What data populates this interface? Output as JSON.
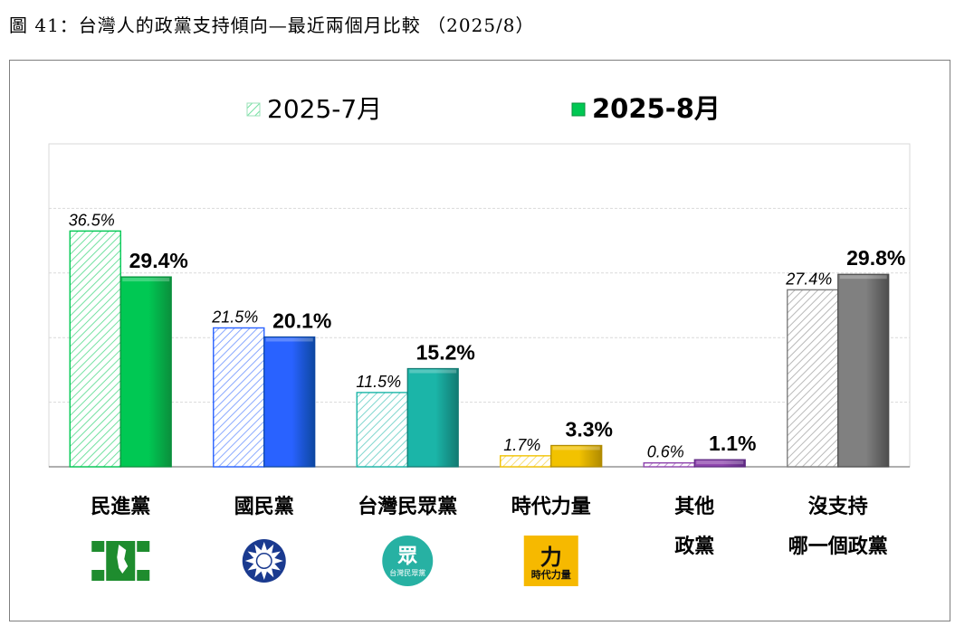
{
  "figure_title": "圖 41：台灣人的政黨支持傾向—最近兩個月比較 （2025/8）",
  "colors": {
    "grid": "#d9d9d9",
    "axis": "#7f7f7f"
  },
  "chart_data": {
    "type": "bar",
    "title": "",
    "ylim": [
      0,
      50
    ],
    "grid": true,
    "legend_position": "top",
    "categories": [
      [
        "民進黨"
      ],
      [
        "國民黨"
      ],
      [
        "台灣民眾黨"
      ],
      [
        "時代力量"
      ],
      [
        "其他",
        "政黨"
      ],
      [
        "沒支持",
        "哪一個政黨"
      ]
    ],
    "series": [
      {
        "name": "2025-7月",
        "values": [
          36.5,
          21.5,
          11.5,
          1.7,
          0.6,
          27.4
        ],
        "labels": [
          "36.5%",
          "21.5%",
          "11.5%",
          "1.7%",
          "0.6%",
          "27.4%"
        ]
      },
      {
        "name": "2025-8月",
        "values": [
          29.4,
          20.1,
          15.2,
          3.3,
          1.1,
          29.8
        ],
        "labels": [
          "29.4%",
          "20.1%",
          "15.2%",
          "3.3%",
          "1.1%",
          "29.8%"
        ]
      }
    ],
    "category_colors": [
      "#00c853",
      "#2962ff",
      "#1bb5a8",
      "#f2c200",
      "#8e44ad",
      "#808080"
    ],
    "category_dark_colors": [
      "#0a8f3c",
      "#0d47a1",
      "#127a72",
      "#b08a00",
      "#5e2a82",
      "#4d4d4d"
    ],
    "logos": [
      "dpp-logo",
      "kmt-logo",
      "tpp-logo",
      "npp-logo",
      "",
      ""
    ],
    "logo_text": {
      "tpp_glyph": "眾",
      "tpp_name": "台灣民眾黨",
      "npp_glyph": "力",
      "npp_name": "時代力量"
    }
  }
}
